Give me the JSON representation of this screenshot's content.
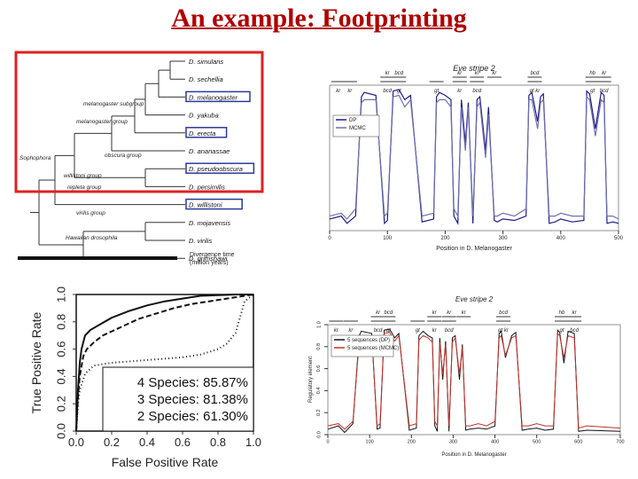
{
  "slide": {
    "title": "An example: Footprinting"
  },
  "tree": {
    "species": [
      {
        "name": "D. simulans",
        "boxed": false
      },
      {
        "name": "D. sechellia",
        "boxed": false
      },
      {
        "name": "D. melanogaster",
        "boxed": true
      },
      {
        "name": "D. yakuba",
        "boxed": false
      },
      {
        "name": "D. erecta",
        "boxed": true
      },
      {
        "name": "D. ananassae",
        "boxed": false
      },
      {
        "name": "D. pseudoobscura",
        "boxed": true
      },
      {
        "name": "D. persimilis",
        "boxed": false
      },
      {
        "name": "D. willistoni",
        "boxed": true
      },
      {
        "name": "D. mojavensis",
        "boxed": false
      },
      {
        "name": "D. virilis",
        "boxed": false
      },
      {
        "name": "D. grimshawi",
        "boxed": false
      }
    ],
    "groups": [
      "melanogaster subgroup",
      "melanogaster group",
      "Sophophora",
      "obscura group",
      "willistoni group",
      "repleta group",
      "virilis group",
      "Hawaiian drosophila"
    ],
    "scale_label": "Divergence time\n(million years)",
    "highlight_color": "#e02020"
  },
  "chart_data": [
    {
      "type": "line",
      "title": "Eve stripe 2",
      "xlabel": "Position in D. Melanogaster",
      "ylabel": "",
      "xlim": [
        0,
        500
      ],
      "ylim": [
        0,
        1
      ],
      "x_ticks": [
        0,
        100,
        200,
        300,
        400,
        500
      ],
      "legend": [
        "DP",
        "MCMC"
      ],
      "legend_position": "top-left",
      "site_labels": [
        {
          "x": 15,
          "top": "",
          "bottom": "kr"
        },
        {
          "x": 35,
          "top": "",
          "bottom": "kr"
        },
        {
          "x": 100,
          "top": "kr",
          "bottom": "bcd"
        },
        {
          "x": 120,
          "top": "bcd",
          "bottom": "gt"
        },
        {
          "x": 185,
          "top": "",
          "bottom": "gt"
        },
        {
          "x": 225,
          "top": "kr",
          "bottom": "kr"
        },
        {
          "x": 255,
          "top": "kr",
          "bottom": "bcd"
        },
        {
          "x": 285,
          "top": "kr",
          "bottom": ""
        },
        {
          "x": 355,
          "top": "bcd",
          "bottom": "gt kr"
        },
        {
          "x": 455,
          "top": "hb",
          "bottom": "gt"
        },
        {
          "x": 475,
          "top": "kr",
          "bottom": "bcd"
        }
      ],
      "series": [
        {
          "name": "DP",
          "color": "#1b1b8a",
          "x": [
            0,
            20,
            30,
            45,
            55,
            60,
            80,
            95,
            100,
            110,
            120,
            130,
            140,
            160,
            180,
            185,
            190,
            200,
            210,
            215,
            222,
            228,
            235,
            240,
            248,
            255,
            260,
            270,
            275,
            285,
            290,
            300,
            320,
            340,
            345,
            350,
            360,
            365,
            370,
            380,
            390,
            400,
            420,
            440,
            445,
            450,
            460,
            470,
            475,
            480,
            490,
            500
          ],
          "y": [
            0.08,
            0.1,
            0.05,
            0.1,
            0.92,
            0.95,
            0.93,
            0.05,
            0.07,
            0.96,
            0.97,
            0.9,
            0.93,
            0.06,
            0.08,
            0.92,
            0.95,
            0.93,
            0.9,
            0.1,
            0.05,
            0.9,
            0.6,
            0.88,
            0.05,
            0.9,
            0.92,
            0.55,
            0.85,
            0.07,
            0.06,
            0.08,
            0.07,
            0.1,
            0.93,
            0.95,
            0.75,
            0.92,
            0.94,
            0.05,
            0.06,
            0.08,
            0.06,
            0.07,
            0.96,
            0.94,
            0.7,
            0.95,
            0.93,
            0.05,
            0.06,
            0.05
          ]
        },
        {
          "name": "MCMC",
          "color": "#6f6fb0",
          "x": [
            0,
            20,
            30,
            45,
            55,
            60,
            80,
            95,
            100,
            110,
            120,
            130,
            140,
            160,
            180,
            185,
            190,
            200,
            210,
            215,
            222,
            228,
            235,
            240,
            248,
            255,
            260,
            270,
            275,
            285,
            290,
            300,
            320,
            340,
            345,
            350,
            360,
            365,
            370,
            380,
            390,
            400,
            420,
            440,
            445,
            450,
            460,
            470,
            475,
            480,
            490,
            500
          ],
          "y": [
            0.1,
            0.12,
            0.08,
            0.15,
            0.88,
            0.9,
            0.9,
            0.1,
            0.12,
            0.92,
            0.93,
            0.85,
            0.9,
            0.1,
            0.12,
            0.88,
            0.9,
            0.9,
            0.85,
            0.15,
            0.1,
            0.85,
            0.55,
            0.85,
            0.1,
            0.85,
            0.88,
            0.5,
            0.8,
            0.1,
            0.1,
            0.12,
            0.1,
            0.15,
            0.9,
            0.9,
            0.7,
            0.88,
            0.9,
            0.1,
            0.1,
            0.12,
            0.1,
            0.1,
            0.92,
            0.9,
            0.65,
            0.9,
            0.88,
            0.1,
            0.1,
            0.08
          ]
        }
      ]
    },
    {
      "type": "line",
      "title": "",
      "xlabel": "False Positive Rate",
      "ylabel": "True Positive Rate",
      "xlim": [
        0,
        1
      ],
      "ylim": [
        0,
        1
      ],
      "x_ticks": [
        0.0,
        0.2,
        0.4,
        0.6,
        0.8,
        1.0
      ],
      "y_ticks": [
        0.0,
        0.2,
        0.4,
        0.6,
        0.8,
        1.0
      ],
      "annotations": [
        "4 Species: 85.87%",
        "3 Species: 81.38%",
        "2 Species: 61.30%"
      ],
      "series": [
        {
          "name": "4 Species",
          "style": "solid",
          "x": [
            0,
            0.01,
            0.02,
            0.03,
            0.05,
            0.08,
            0.12,
            0.2,
            0.3,
            0.4,
            0.5,
            0.6,
            0.7,
            0.8,
            0.9,
            1.0
          ],
          "y": [
            0,
            0.3,
            0.5,
            0.6,
            0.7,
            0.74,
            0.77,
            0.83,
            0.88,
            0.92,
            0.95,
            0.97,
            0.99,
            0.995,
            1.0,
            1.0
          ]
        },
        {
          "name": "3 Species",
          "style": "dashed",
          "x": [
            0,
            0.01,
            0.02,
            0.04,
            0.06,
            0.1,
            0.15,
            0.25,
            0.35,
            0.45,
            0.55,
            0.65,
            0.75,
            0.85,
            0.95,
            1.0
          ],
          "y": [
            0,
            0.25,
            0.4,
            0.55,
            0.6,
            0.65,
            0.7,
            0.76,
            0.82,
            0.86,
            0.9,
            0.93,
            0.95,
            0.97,
            0.99,
            1.0
          ]
        },
        {
          "name": "2 Species",
          "style": "dotted",
          "x": [
            0,
            0.01,
            0.02,
            0.05,
            0.1,
            0.2,
            0.3,
            0.4,
            0.5,
            0.6,
            0.7,
            0.8,
            0.85,
            0.9,
            0.95,
            1.0
          ],
          "y": [
            0,
            0.2,
            0.3,
            0.42,
            0.48,
            0.5,
            0.51,
            0.52,
            0.53,
            0.54,
            0.56,
            0.6,
            0.64,
            0.72,
            0.95,
            1.0
          ]
        }
      ]
    },
    {
      "type": "line",
      "title": "Eve stripe 2",
      "xlabel": "Position in D. Melanogaster",
      "ylabel": "Regulatory element",
      "xlim": [
        0,
        700
      ],
      "ylim": [
        0,
        1
      ],
      "x_ticks": [
        0,
        100,
        200,
        300,
        400,
        500,
        600,
        700
      ],
      "y_ticks": [
        0.0,
        0.2,
        0.4,
        0.6,
        0.8,
        1.0
      ],
      "legend": [
        "5 sequences (DP)",
        "5 sequences (MCMC)"
      ],
      "legend_position": "top-left",
      "site_labels": [
        {
          "x": 20,
          "top": "",
          "bottom": "kr"
        },
        {
          "x": 55,
          "top": "",
          "bottom": "kr"
        },
        {
          "x": 120,
          "top": "kr",
          "bottom": "bcd"
        },
        {
          "x": 145,
          "top": "bcd",
          "bottom": "gt"
        },
        {
          "x": 215,
          "top": "",
          "bottom": "gt"
        },
        {
          "x": 255,
          "top": "kr",
          "bottom": "kr"
        },
        {
          "x": 290,
          "top": "kr",
          "bottom": "bcd"
        },
        {
          "x": 325,
          "top": "kr",
          "bottom": ""
        },
        {
          "x": 420,
          "top": "bcd",
          "bottom": "gt kr"
        },
        {
          "x": 560,
          "top": "hb",
          "bottom": "gt"
        },
        {
          "x": 590,
          "top": "kr",
          "bottom": "bcd"
        }
      ],
      "series": [
        {
          "name": "5 sequences (DP)",
          "color": "#111111",
          "x": [
            0,
            25,
            40,
            60,
            75,
            80,
            105,
            118,
            125,
            135,
            148,
            160,
            170,
            195,
            212,
            218,
            228,
            240,
            250,
            256,
            262,
            268,
            275,
            282,
            290,
            298,
            305,
            315,
            322,
            330,
            340,
            360,
            380,
            400,
            410,
            415,
            425,
            440,
            450,
            465,
            480,
            500,
            520,
            540,
            550,
            555,
            565,
            575,
            590,
            600,
            620,
            700
          ],
          "y": [
            0.05,
            0.08,
            0.02,
            0.1,
            0.9,
            0.94,
            0.92,
            0.05,
            0.06,
            0.95,
            0.96,
            0.88,
            0.92,
            0.04,
            0.06,
            0.9,
            0.94,
            0.9,
            0.88,
            0.08,
            0.03,
            0.88,
            0.5,
            0.85,
            0.03,
            0.88,
            0.9,
            0.5,
            0.82,
            0.04,
            0.05,
            0.06,
            0.05,
            0.08,
            0.92,
            0.94,
            0.7,
            0.9,
            0.93,
            0.04,
            0.05,
            0.06,
            0.04,
            0.05,
            0.95,
            0.93,
            0.65,
            0.94,
            0.92,
            0.03,
            0.04,
            0.03
          ]
        },
        {
          "name": "5 sequences (MCMC)",
          "color": "#c0302a",
          "x": [
            0,
            25,
            40,
            60,
            75,
            80,
            105,
            118,
            125,
            135,
            148,
            160,
            170,
            195,
            212,
            218,
            228,
            240,
            250,
            256,
            262,
            268,
            275,
            282,
            290,
            298,
            305,
            315,
            322,
            330,
            340,
            360,
            380,
            400,
            410,
            415,
            425,
            440,
            450,
            465,
            480,
            500,
            520,
            540,
            550,
            555,
            565,
            575,
            590,
            600,
            620,
            700
          ],
          "y": [
            0.08,
            0.1,
            0.05,
            0.12,
            0.86,
            0.9,
            0.9,
            0.08,
            0.1,
            0.92,
            0.93,
            0.85,
            0.9,
            0.08,
            0.1,
            0.86,
            0.9,
            0.88,
            0.84,
            0.12,
            0.08,
            0.84,
            0.55,
            0.82,
            0.08,
            0.84,
            0.88,
            0.55,
            0.8,
            0.08,
            0.08,
            0.1,
            0.08,
            0.12,
            0.88,
            0.9,
            0.72,
            0.88,
            0.9,
            0.08,
            0.08,
            0.1,
            0.08,
            0.08,
            0.92,
            0.9,
            0.7,
            0.9,
            0.88,
            0.06,
            0.08,
            0.06
          ]
        }
      ]
    }
  ]
}
